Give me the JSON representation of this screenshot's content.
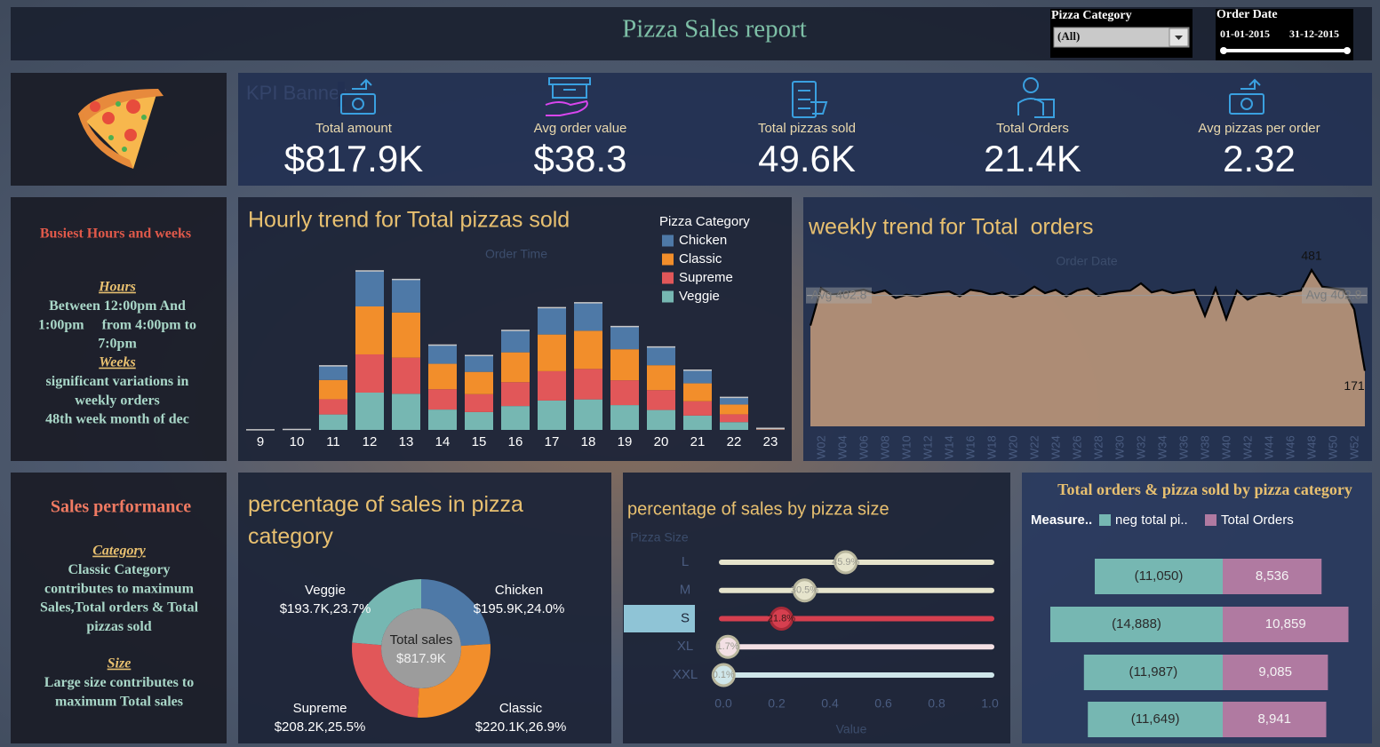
{
  "header": {
    "title": "Pizza Sales report"
  },
  "filters": {
    "category": {
      "label": "Pizza Category",
      "value": "(All)"
    },
    "date": {
      "label": "Order Date",
      "start": "01-01-2015",
      "end": "31-12-2015"
    }
  },
  "kpi_banner": {
    "label": "KPI Banner",
    "items": [
      {
        "label": "Total amount",
        "value": "$817.9K"
      },
      {
        "label": "Avg order value",
        "value": "$38.3"
      },
      {
        "label": "Total pizzas sold",
        "value": "49.6K"
      },
      {
        "label": "Total Orders",
        "value": "21.4K"
      },
      {
        "label": "Avg pizzas per order",
        "value": "2.32"
      }
    ]
  },
  "notes": [
    {
      "title": "Busiest Hours and weeks",
      "sections": [
        {
          "heading": "Hours",
          "lines": [
            "Between 12:00pm And",
            "1:00pm     from 4:00pm to",
            "7:0pm"
          ]
        },
        {
          "heading": "Weeks",
          "lines": [
            "significant variations in",
            "weekly orders",
            "48th week month of dec"
          ]
        }
      ]
    },
    {
      "title": "Sales performance",
      "sections": [
        {
          "heading": "Category",
          "lines": [
            "Classic Category",
            "contributes to maximum",
            "Sales,Total orders & Total",
            "pizzas sold"
          ]
        },
        {
          "heading": "Size",
          "lines": [
            "Large size contributes to",
            "maximum Total sales"
          ]
        }
      ]
    }
  ],
  "chart_data": [
    {
      "type": "stacked_bar",
      "title": "Hourly trend for Total pizzas sold",
      "x_label": "Order Time",
      "legend_title": "Pizza Category",
      "categories": [
        "9",
        "10",
        "11",
        "12",
        "13",
        "14",
        "15",
        "16",
        "17",
        "18",
        "19",
        "20",
        "21",
        "22",
        "23"
      ],
      "series": [
        {
          "name": "Chicken",
          "color": "#4e79a7",
          "values": [
            1,
            4,
            600,
            1514,
            1410,
            795,
            697,
            933,
            1146,
            1192,
            969,
            777,
            560,
            305,
            15
          ]
        },
        {
          "name": "Classic",
          "color": "#f28e2b",
          "values": [
            1,
            6,
            820,
            2044,
            1924,
            1084,
            951,
            1272,
            1563,
            1625,
            1322,
            1060,
            764,
            416,
            20
          ]
        },
        {
          "name": "Supreme",
          "color": "#e15759",
          "values": [
            1,
            4,
            650,
            1628,
            1540,
            867,
            761,
            1017,
            1251,
            1300,
            1058,
            848,
            611,
            333,
            17
          ]
        },
        {
          "name": "Veggie",
          "color": "#76b7b2",
          "values": [
            1,
            4,
            658,
            1590,
            1539,
            867,
            761,
            1017,
            1251,
            1300,
            1057,
            849,
            610,
            332,
            16
          ]
        }
      ]
    },
    {
      "type": "area",
      "title": "weekly trend for Total  orders",
      "x_label": "Order Date",
      "categories": [
        null,
        "W02",
        null,
        "W04",
        null,
        "W06",
        null,
        "W08",
        null,
        "W10",
        null,
        "W12",
        null,
        "W14",
        null,
        "W16",
        null,
        "W18",
        null,
        "W20",
        null,
        "W22",
        null,
        "W24",
        null,
        "W26",
        null,
        "W28",
        null,
        "W30",
        null,
        "W32",
        null,
        "W34",
        null,
        "W36",
        null,
        "W38",
        null,
        "W40",
        null,
        "W42",
        null,
        "W44",
        null,
        "W46",
        null,
        "W48",
        null,
        "W50",
        null,
        "W52",
        null
      ],
      "values": [
        310,
        425,
        405,
        410,
        415,
        420,
        410,
        418,
        395,
        405,
        400,
        408,
        412,
        415,
        400,
        420,
        415,
        405,
        412,
        398,
        408,
        430,
        410,
        420,
        400,
        418,
        425,
        402,
        410,
        415,
        418,
        440,
        412,
        420,
        410,
        415,
        420,
        340,
        425,
        330,
        418,
        390,
        405,
        410,
        400,
        412,
        418,
        481,
        430,
        425,
        420,
        360,
        171
      ],
      "value_labels": [
        null,
        null,
        null,
        null,
        null,
        null,
        null,
        null,
        null,
        null,
        null,
        null,
        null,
        null,
        null,
        null,
        null,
        null,
        null,
        null,
        null,
        null,
        null,
        null,
        null,
        null,
        null,
        null,
        null,
        null,
        null,
        null,
        null,
        null,
        null,
        null,
        null,
        null,
        null,
        null,
        null,
        null,
        null,
        null,
        null,
        null,
        null,
        "481",
        null,
        null,
        null,
        null,
        "171"
      ],
      "color": "#b89478",
      "line_color": "#000000",
      "reference_line": {
        "value": 402.8,
        "label": "Avg 402.8"
      }
    },
    {
      "type": "pie",
      "donut": true,
      "title": "percentage of sales in pizza category",
      "center_label": "Total sales",
      "center_value": "$817.9K",
      "categories": [
        "Chicken",
        "Classic",
        "Supreme",
        "Veggie"
      ],
      "values": [
        24.0,
        26.9,
        25.5,
        23.7
      ],
      "value_labels": [
        "$195.9K,24.0%",
        "$220.1K,26.9%",
        "$208.2K,25.5%",
        "$193.7K,23.7%"
      ],
      "colors": [
        "#4e79a7",
        "#f28e2b",
        "#e15759",
        "#76b7b2"
      ]
    },
    {
      "type": "lollipop",
      "title": "percentage of sales by pizza size",
      "y_label": "Pizza Size",
      "x_label": "Value",
      "categories": [
        "L",
        "M",
        "S",
        "XL",
        "XXL"
      ],
      "values": [
        0.459,
        0.305,
        0.218,
        0.017,
        0.001
      ],
      "value_labels": [
        "45.9%",
        "30.5%",
        "21.8%",
        "1.7%",
        "0.1%"
      ],
      "colors": [
        "#e6e4cc",
        "#e6e4cc",
        "#d63f4f",
        "#f3e0e4",
        "#cfe6ea"
      ],
      "highlight": "S",
      "xlim": [
        0,
        1
      ],
      "xticks": [
        {
          "value": 0,
          "label": "0.0"
        },
        0.2,
        0.4,
        0.6,
        0.8,
        {
          "value": 1,
          "label": "1.0"
        }
      ]
    },
    {
      "type": "diverging_bar",
      "title": "Total orders & pizza sold by pizza category",
      "legend_title": "Measure..",
      "categories": [
        null,
        null,
        null,
        null
      ],
      "series": [
        {
          "name": "neg total pi..",
          "color": "#76b7b2",
          "values": [
            -11050,
            -14888,
            -11987,
            -11649
          ],
          "value_labels": [
            "(11,050)",
            "(14,888)",
            "(11,987)",
            "(11,649)"
          ]
        },
        {
          "name": "Total Orders",
          "color": "#b07aa1",
          "values": [
            8536,
            10859,
            9085,
            8941
          ],
          "value_labels": [
            "8,536",
            "10,859",
            "9,085",
            "8,941"
          ]
        }
      ]
    }
  ]
}
